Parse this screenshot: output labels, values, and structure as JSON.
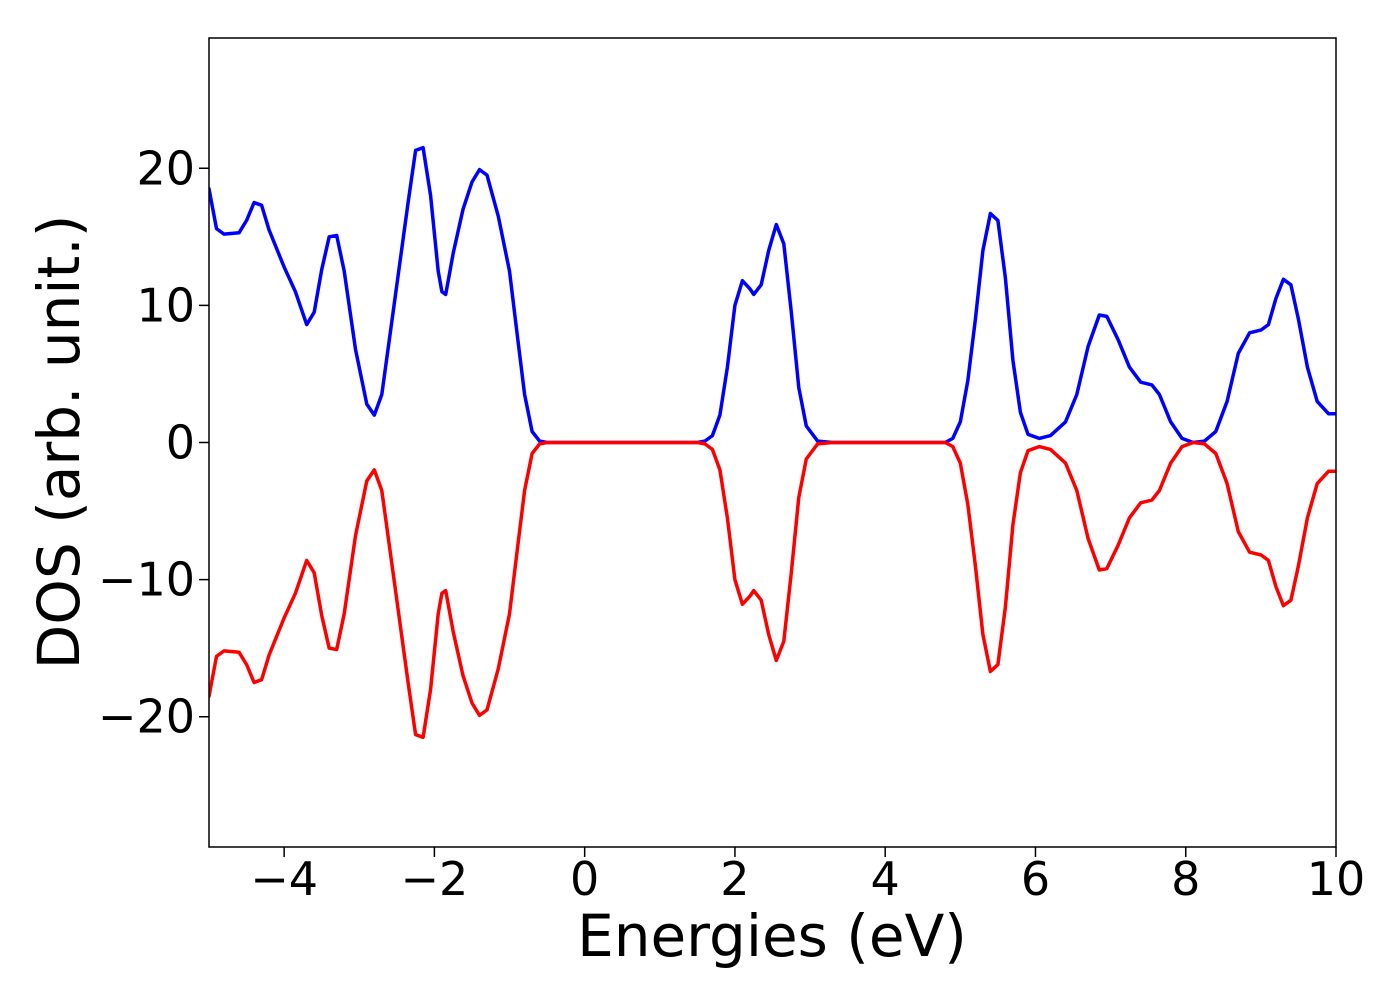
{
  "chart_data": {
    "type": "line",
    "title": "",
    "xlabel": "Energies (eV)",
    "ylabel": "DOS (arb. unit.)",
    "xlim": [
      -5,
      10
    ],
    "ylim": [
      -29.5,
      29.5
    ],
    "grid": false,
    "legend": "none",
    "x_ticks": [
      {
        "value": -4,
        "label": "−4"
      },
      {
        "value": -2,
        "label": "−2"
      },
      {
        "value": 0,
        "label": "0"
      },
      {
        "value": 2,
        "label": "2"
      },
      {
        "value": 4,
        "label": "4"
      },
      {
        "value": 6,
        "label": "6"
      },
      {
        "value": 8,
        "label": "8"
      },
      {
        "value": 10,
        "label": "10"
      }
    ],
    "y_ticks": [
      {
        "value": 20,
        "label": "20"
      },
      {
        "value": 10,
        "label": "10"
      },
      {
        "value": 0,
        "label": "0"
      },
      {
        "value": -10,
        "label": "−10"
      },
      {
        "value": -20,
        "label": "−20"
      }
    ],
    "series": [
      {
        "color": "#0000ff",
        "points": [
          [
            -5.0,
            18.5
          ],
          [
            -4.9,
            15.6
          ],
          [
            -4.8,
            15.2
          ],
          [
            -4.6,
            15.3
          ],
          [
            -4.5,
            16.2
          ],
          [
            -4.4,
            17.5
          ],
          [
            -4.3,
            17.3
          ],
          [
            -4.2,
            15.5
          ],
          [
            -4.0,
            12.8
          ],
          [
            -3.85,
            11.0
          ],
          [
            -3.7,
            8.6
          ],
          [
            -3.6,
            9.5
          ],
          [
            -3.5,
            12.6
          ],
          [
            -3.4,
            15.0
          ],
          [
            -3.3,
            15.1
          ],
          [
            -3.2,
            12.5
          ],
          [
            -3.05,
            6.8
          ],
          [
            -2.9,
            2.8
          ],
          [
            -2.8,
            2.0
          ],
          [
            -2.7,
            3.5
          ],
          [
            -2.55,
            9.5
          ],
          [
            -2.35,
            17.5
          ],
          [
            -2.25,
            21.3
          ],
          [
            -2.15,
            21.5
          ],
          [
            -2.05,
            18.0
          ],
          [
            -1.95,
            12.5
          ],
          [
            -1.9,
            11.0
          ],
          [
            -1.85,
            10.8
          ],
          [
            -1.75,
            13.8
          ],
          [
            -1.62,
            17.0
          ],
          [
            -1.5,
            19.0
          ],
          [
            -1.4,
            19.9
          ],
          [
            -1.3,
            19.5
          ],
          [
            -1.15,
            16.5
          ],
          [
            -1.0,
            12.5
          ],
          [
            -0.9,
            8.0
          ],
          [
            -0.8,
            3.5
          ],
          [
            -0.7,
            0.8
          ],
          [
            -0.6,
            0.1
          ],
          [
            -0.5,
            0.0
          ],
          [
            0.0,
            0.0
          ],
          [
            1.0,
            0.0
          ],
          [
            1.5,
            0.0
          ],
          [
            1.6,
            0.1
          ],
          [
            1.7,
            0.5
          ],
          [
            1.8,
            2.0
          ],
          [
            1.9,
            5.5
          ],
          [
            2.0,
            10.0
          ],
          [
            2.1,
            11.8
          ],
          [
            2.2,
            11.2
          ],
          [
            2.25,
            10.8
          ],
          [
            2.35,
            11.5
          ],
          [
            2.45,
            14.0
          ],
          [
            2.55,
            15.9
          ],
          [
            2.65,
            14.5
          ],
          [
            2.75,
            9.5
          ],
          [
            2.85,
            4.0
          ],
          [
            2.95,
            1.2
          ],
          [
            3.1,
            0.1
          ],
          [
            3.3,
            0.0
          ],
          [
            4.0,
            0.0
          ],
          [
            4.8,
            0.0
          ],
          [
            4.9,
            0.3
          ],
          [
            5.0,
            1.5
          ],
          [
            5.1,
            4.5
          ],
          [
            5.2,
            9.0
          ],
          [
            5.3,
            14.0
          ],
          [
            5.4,
            16.7
          ],
          [
            5.5,
            16.2
          ],
          [
            5.6,
            12.0
          ],
          [
            5.7,
            6.0
          ],
          [
            5.8,
            2.2
          ],
          [
            5.9,
            0.6
          ],
          [
            6.05,
            0.3
          ],
          [
            6.2,
            0.5
          ],
          [
            6.4,
            1.5
          ],
          [
            6.55,
            3.5
          ],
          [
            6.7,
            7.0
          ],
          [
            6.85,
            9.3
          ],
          [
            6.95,
            9.2
          ],
          [
            7.1,
            7.5
          ],
          [
            7.25,
            5.5
          ],
          [
            7.4,
            4.4
          ],
          [
            7.55,
            4.2
          ],
          [
            7.65,
            3.5
          ],
          [
            7.8,
            1.5
          ],
          [
            7.95,
            0.3
          ],
          [
            8.1,
            0.0
          ],
          [
            8.25,
            0.1
          ],
          [
            8.4,
            0.8
          ],
          [
            8.55,
            3.0
          ],
          [
            8.7,
            6.5
          ],
          [
            8.85,
            8.0
          ],
          [
            9.0,
            8.2
          ],
          [
            9.1,
            8.6
          ],
          [
            9.2,
            10.5
          ],
          [
            9.3,
            11.9
          ],
          [
            9.4,
            11.5
          ],
          [
            9.5,
            9.0
          ],
          [
            9.62,
            5.5
          ],
          [
            9.75,
            3.0
          ],
          [
            9.9,
            2.1
          ],
          [
            10.0,
            2.1
          ]
        ]
      },
      {
        "color": "#ff0000",
        "points": [
          [
            -5.0,
            -18.5
          ],
          [
            -4.9,
            -15.6
          ],
          [
            -4.8,
            -15.2
          ],
          [
            -4.6,
            -15.3
          ],
          [
            -4.5,
            -16.2
          ],
          [
            -4.4,
            -17.5
          ],
          [
            -4.3,
            -17.3
          ],
          [
            -4.2,
            -15.5
          ],
          [
            -4.0,
            -12.8
          ],
          [
            -3.85,
            -11.0
          ],
          [
            -3.7,
            -8.6
          ],
          [
            -3.6,
            -9.5
          ],
          [
            -3.5,
            -12.6
          ],
          [
            -3.4,
            -15.0
          ],
          [
            -3.3,
            -15.1
          ],
          [
            -3.2,
            -12.5
          ],
          [
            -3.05,
            -6.8
          ],
          [
            -2.9,
            -2.8
          ],
          [
            -2.8,
            -2.0
          ],
          [
            -2.7,
            -3.5
          ],
          [
            -2.55,
            -9.5
          ],
          [
            -2.35,
            -17.5
          ],
          [
            -2.25,
            -21.3
          ],
          [
            -2.15,
            -21.5
          ],
          [
            -2.05,
            -18.0
          ],
          [
            -1.95,
            -12.5
          ],
          [
            -1.9,
            -11.0
          ],
          [
            -1.85,
            -10.8
          ],
          [
            -1.75,
            -13.8
          ],
          [
            -1.62,
            -17.0
          ],
          [
            -1.5,
            -19.0
          ],
          [
            -1.4,
            -19.9
          ],
          [
            -1.3,
            -19.5
          ],
          [
            -1.15,
            -16.5
          ],
          [
            -1.0,
            -12.5
          ],
          [
            -0.9,
            -8.0
          ],
          [
            -0.8,
            -3.5
          ],
          [
            -0.7,
            -0.8
          ],
          [
            -0.6,
            -0.1
          ],
          [
            -0.5,
            0.0
          ],
          [
            0.0,
            0.0
          ],
          [
            1.0,
            0.0
          ],
          [
            1.5,
            0.0
          ],
          [
            1.6,
            -0.1
          ],
          [
            1.7,
            -0.5
          ],
          [
            1.8,
            -2.0
          ],
          [
            1.9,
            -5.5
          ],
          [
            2.0,
            -10.0
          ],
          [
            2.1,
            -11.8
          ],
          [
            2.2,
            -11.2
          ],
          [
            2.25,
            -10.8
          ],
          [
            2.35,
            -11.5
          ],
          [
            2.45,
            -14.0
          ],
          [
            2.55,
            -15.9
          ],
          [
            2.65,
            -14.5
          ],
          [
            2.75,
            -9.5
          ],
          [
            2.85,
            -4.0
          ],
          [
            2.95,
            -1.2
          ],
          [
            3.1,
            -0.1
          ],
          [
            3.3,
            0.0
          ],
          [
            4.0,
            0.0
          ],
          [
            4.8,
            0.0
          ],
          [
            4.9,
            -0.3
          ],
          [
            5.0,
            -1.5
          ],
          [
            5.1,
            -4.5
          ],
          [
            5.2,
            -9.0
          ],
          [
            5.3,
            -14.0
          ],
          [
            5.4,
            -16.7
          ],
          [
            5.5,
            -16.2
          ],
          [
            5.6,
            -12.0
          ],
          [
            5.7,
            -6.0
          ],
          [
            5.8,
            -2.2
          ],
          [
            5.9,
            -0.6
          ],
          [
            6.05,
            -0.3
          ],
          [
            6.2,
            -0.5
          ],
          [
            6.4,
            -1.5
          ],
          [
            6.55,
            -3.5
          ],
          [
            6.7,
            -7.0
          ],
          [
            6.85,
            -9.3
          ],
          [
            6.95,
            -9.2
          ],
          [
            7.1,
            -7.5
          ],
          [
            7.25,
            -5.5
          ],
          [
            7.4,
            -4.4
          ],
          [
            7.55,
            -4.2
          ],
          [
            7.65,
            -3.5
          ],
          [
            7.8,
            -1.5
          ],
          [
            7.95,
            -0.3
          ],
          [
            8.1,
            0.0
          ],
          [
            8.25,
            -0.1
          ],
          [
            8.4,
            -0.8
          ],
          [
            8.55,
            -3.0
          ],
          [
            8.7,
            -6.5
          ],
          [
            8.85,
            -8.0
          ],
          [
            9.0,
            -8.2
          ],
          [
            9.1,
            -8.6
          ],
          [
            9.2,
            -10.5
          ],
          [
            9.3,
            -11.9
          ],
          [
            9.4,
            -11.5
          ],
          [
            9.5,
            -9.0
          ],
          [
            9.62,
            -5.5
          ],
          [
            9.75,
            -3.0
          ],
          [
            9.9,
            -2.1
          ],
          [
            10.0,
            -2.1
          ]
        ]
      }
    ]
  }
}
